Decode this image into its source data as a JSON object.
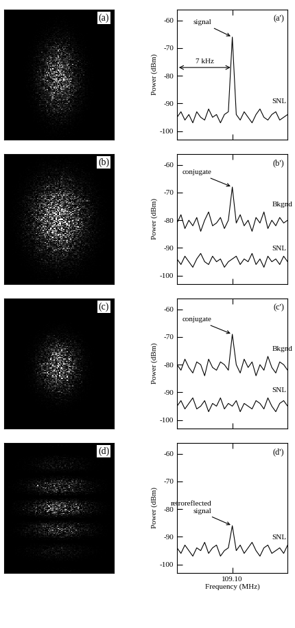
{
  "chart_data": [
    {
      "type": "line",
      "panel": "(a')",
      "ylabel": "Power (dBm)",
      "x": [
        109.093,
        109.0935,
        109.094,
        109.0945,
        109.095,
        109.0955,
        109.096,
        109.0965,
        109.097,
        109.0975,
        109.098,
        109.0985,
        109.099,
        109.0995,
        109.1,
        109.1005,
        109.101,
        109.1015,
        109.102,
        109.1025,
        109.103,
        109.1035,
        109.104,
        109.1045,
        109.105,
        109.1055,
        109.106,
        109.1065,
        109.107
      ],
      "series": [
        {
          "name": "SNL",
          "color": "#000000",
          "values": [
            -95,
            -93,
            -96,
            -94,
            -97,
            -93,
            -95,
            -96,
            -92,
            -95,
            -94,
            -97,
            -94,
            -93,
            -66,
            -94,
            -96,
            -93,
            -95,
            -97,
            -94,
            -92,
            -95,
            -96,
            -94,
            -93,
            -96,
            -95,
            -94
          ]
        }
      ],
      "annotations": [
        {
          "text": "signal",
          "x": 109.1,
          "y": -66
        },
        {
          "text": "7 kHz",
          "span": [
            109.093,
            109.1
          ],
          "y": -77
        }
      ],
      "xlim": [
        109.093,
        109.107
      ],
      "xticks": [
        {
          "value": 109.1,
          "label": "109.10"
        }
      ],
      "ylim": [
        -103,
        -56
      ],
      "yticks": [
        -60,
        -70,
        -80,
        -90,
        -100
      ],
      "tick_labels": "y"
    },
    {
      "type": "line",
      "panel": "(b')",
      "ylabel": "Power (dBm)",
      "x": [
        109.093,
        109.0935,
        109.094,
        109.0945,
        109.095,
        109.0955,
        109.096,
        109.0965,
        109.097,
        109.0975,
        109.098,
        109.0985,
        109.099,
        109.0995,
        109.1,
        109.1005,
        109.101,
        109.1015,
        109.102,
        109.1025,
        109.103,
        109.1035,
        109.104,
        109.1045,
        109.105,
        109.1055,
        109.106,
        109.1065,
        109.107
      ],
      "series": [
        {
          "name": "Bkgnd",
          "color": "#000000",
          "values": [
            -81,
            -78,
            -83,
            -80,
            -82,
            -79,
            -84,
            -80,
            -77,
            -82,
            -81,
            -79,
            -83,
            -80,
            -68,
            -81,
            -78,
            -82,
            -80,
            -84,
            -79,
            -81,
            -77,
            -83,
            -80,
            -82,
            -79,
            -81,
            -80
          ]
        },
        {
          "name": "SNL",
          "color": "#000000",
          "values": [
            -94,
            -96,
            -93,
            -95,
            -97,
            -94,
            -92,
            -95,
            -96,
            -93,
            -95,
            -94,
            -97,
            -95,
            -94,
            -93,
            -96,
            -94,
            -95,
            -92,
            -96,
            -94,
            -97,
            -93,
            -95,
            -94,
            -96,
            -93,
            -95
          ]
        }
      ],
      "annotations": [
        {
          "text": "conjugate",
          "x": 109.1,
          "y": -68
        }
      ],
      "xlim": [
        109.093,
        109.107
      ],
      "xticks": [
        {
          "value": 109.1,
          "label": "109.10"
        }
      ],
      "ylim": [
        -103,
        -56
      ],
      "yticks": [
        -60,
        -70,
        -80,
        -90,
        -100
      ],
      "tick_labels": "y"
    },
    {
      "type": "line",
      "panel": "(c')",
      "ylabel": "Power (dBm)",
      "x": [
        109.093,
        109.0935,
        109.094,
        109.0945,
        109.095,
        109.0955,
        109.096,
        109.0965,
        109.097,
        109.0975,
        109.098,
        109.0985,
        109.099,
        109.0995,
        109.1,
        109.1005,
        109.101,
        109.1015,
        109.102,
        109.1025,
        109.103,
        109.1035,
        109.104,
        109.1045,
        109.105,
        109.1055,
        109.106,
        109.1065,
        109.107
      ],
      "series": [
        {
          "name": "Bkgnd",
          "color": "#000000",
          "values": [
            -80,
            -82,
            -78,
            -81,
            -83,
            -79,
            -80,
            -84,
            -78,
            -81,
            -82,
            -79,
            -80,
            -82,
            -69,
            -80,
            -83,
            -78,
            -81,
            -79,
            -84,
            -80,
            -82,
            -77,
            -81,
            -83,
            -79,
            -80,
            -82
          ]
        },
        {
          "name": "SNL",
          "color": "#000000",
          "values": [
            -95,
            -93,
            -96,
            -94,
            -92,
            -96,
            -95,
            -93,
            -97,
            -94,
            -95,
            -92,
            -96,
            -94,
            -95,
            -93,
            -97,
            -94,
            -95,
            -96,
            -93,
            -94,
            -96,
            -92,
            -95,
            -97,
            -94,
            -93,
            -95
          ]
        }
      ],
      "annotations": [
        {
          "text": "conjugate",
          "x": 109.1,
          "y": -69
        }
      ],
      "xlim": [
        109.093,
        109.107
      ],
      "xticks": [
        {
          "value": 109.1,
          "label": "109.10"
        }
      ],
      "ylim": [
        -103,
        -56
      ],
      "yticks": [
        -60,
        -70,
        -80,
        -90,
        -100
      ],
      "tick_labels": "y"
    },
    {
      "type": "line",
      "panel": "(d')",
      "ylabel": "Power (dBm)",
      "xlabel": "Frequency (MHz)",
      "x": [
        109.093,
        109.0935,
        109.094,
        109.0945,
        109.095,
        109.0955,
        109.096,
        109.0965,
        109.097,
        109.0975,
        109.098,
        109.0985,
        109.099,
        109.0995,
        109.1,
        109.1005,
        109.101,
        109.1015,
        109.102,
        109.1025,
        109.103,
        109.1035,
        109.104,
        109.1045,
        109.105,
        109.1055,
        109.106,
        109.1065,
        109.107
      ],
      "series": [
        {
          "name": "SNL",
          "color": "#000000",
          "values": [
            -94,
            -96,
            -93,
            -95,
            -97,
            -94,
            -95,
            -92,
            -96,
            -94,
            -93,
            -97,
            -95,
            -94,
            -86,
            -95,
            -93,
            -96,
            -94,
            -92,
            -95,
            -97,
            -94,
            -93,
            -96,
            -95,
            -94,
            -96,
            -93
          ]
        }
      ],
      "annotations": [
        {
          "text": "retroreflected\nsignal",
          "x": 109.1,
          "y": -86
        }
      ],
      "xlim": [
        109.093,
        109.107
      ],
      "xticks": [
        {
          "value": 109.1,
          "label": "109.10"
        }
      ],
      "ylim": [
        -103,
        -56
      ],
      "yticks": [
        -60,
        -70,
        -80,
        -90,
        -100
      ]
    }
  ],
  "images": [
    {
      "label": "(a)"
    },
    {
      "label": "(b)"
    },
    {
      "label": "(c)"
    },
    {
      "label": "(d)"
    }
  ]
}
